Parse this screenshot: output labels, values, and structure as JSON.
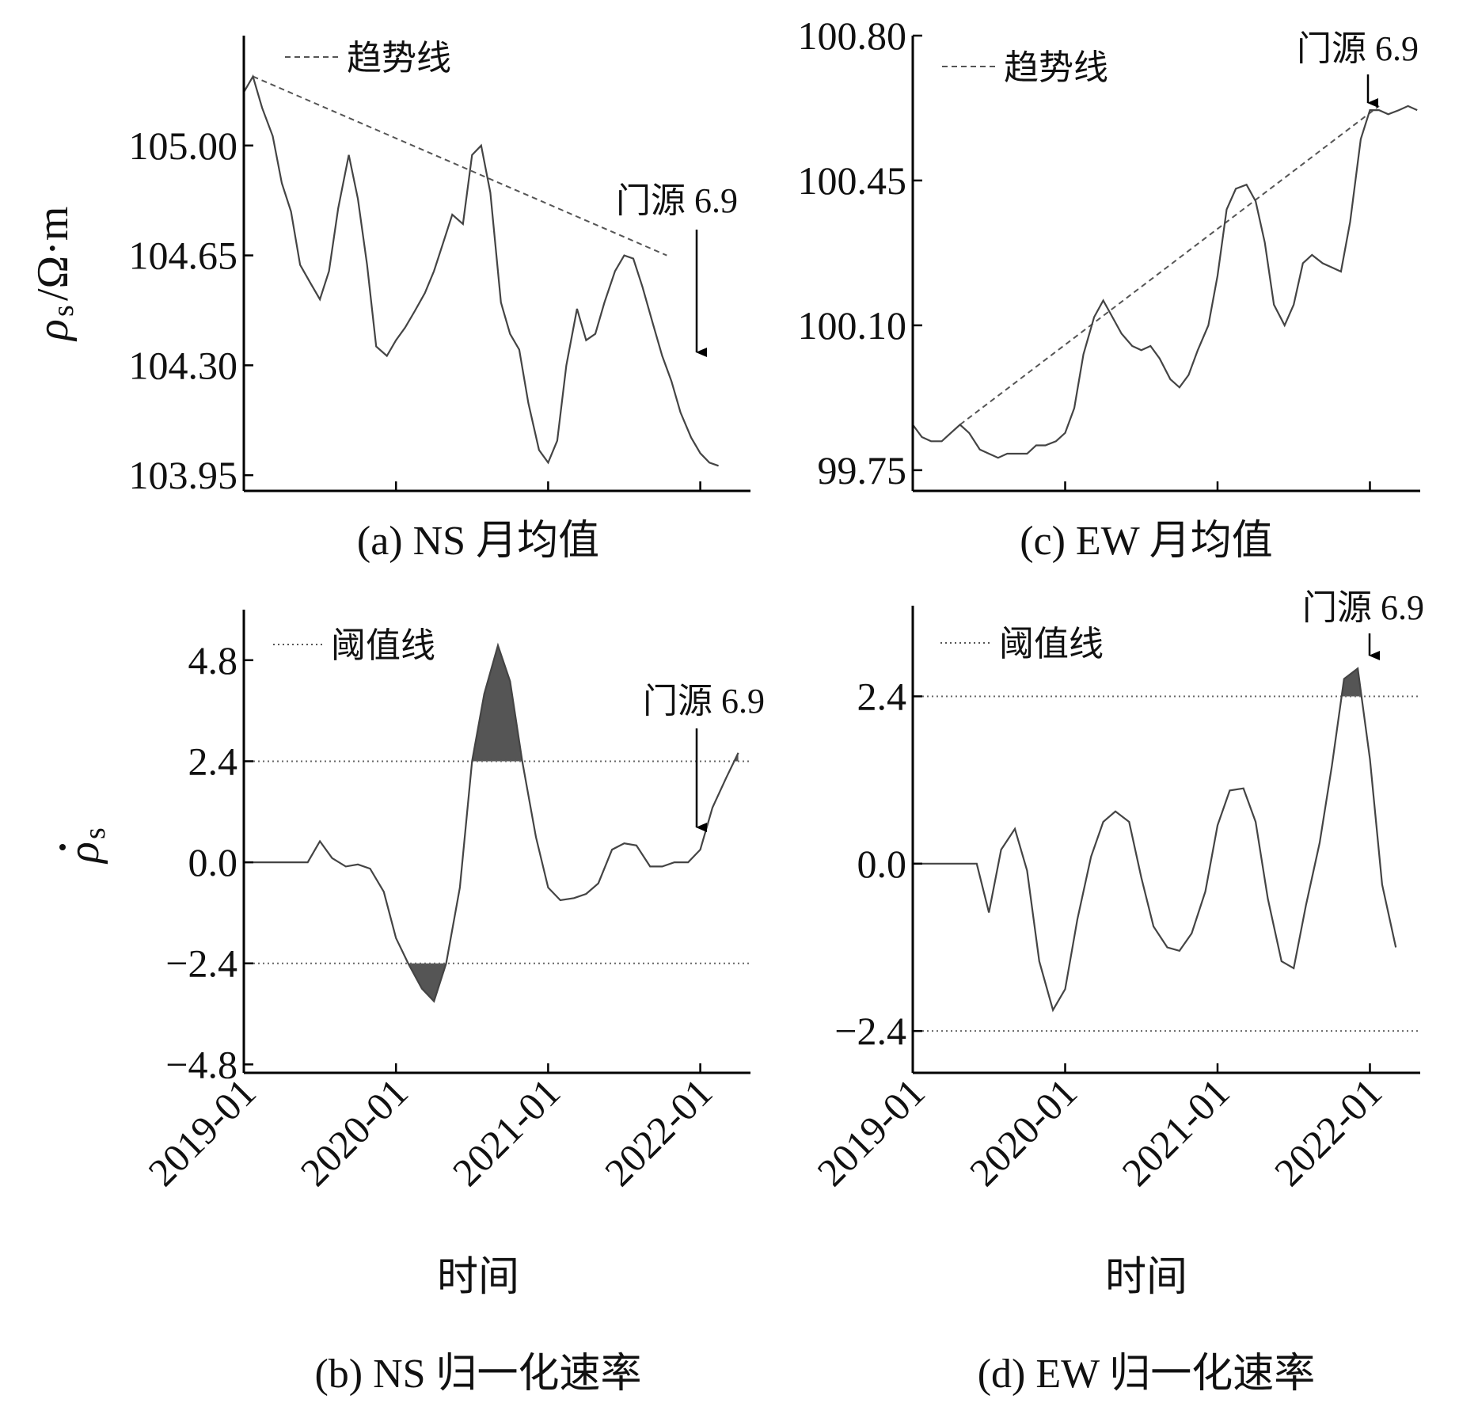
{
  "chart_data": [
    {
      "id": "a",
      "type": "line",
      "caption": "(a) NS 月均值",
      "ylabel_main": "ρ",
      "ylabel_sub": "s",
      "ylabel_unit": "/Ω·m",
      "ylim": [
        103.9,
        105.35
      ],
      "yticks": [
        103.95,
        104.3,
        104.65,
        105.0
      ],
      "ytick_labels": [
        "103.95",
        "104.30",
        "104.65",
        "105.00"
      ],
      "x_range": [
        2019.0,
        2022.33
      ],
      "xticks": [
        2019.0,
        2020.0,
        2021.0,
        2022.0
      ],
      "legend": "趋势线",
      "annotation": {
        "text": "门源 6.9",
        "x": 2022.0,
        "y": 104.31
      },
      "trend_line": [
        [
          2019.06,
          105.22
        ],
        [
          2021.78,
          104.65
        ]
      ],
      "series": [
        {
          "points": [
            [
              2019.0,
              105.17
            ],
            [
              2019.06,
              105.22
            ],
            [
              2019.12,
              105.12
            ],
            [
              2019.19,
              105.03
            ],
            [
              2019.25,
              104.88
            ],
            [
              2019.31,
              104.79
            ],
            [
              2019.37,
              104.62
            ],
            [
              2019.44,
              104.56
            ],
            [
              2019.5,
              104.51
            ],
            [
              2019.56,
              104.6
            ],
            [
              2019.62,
              104.8
            ],
            [
              2019.69,
              104.97
            ],
            [
              2019.75,
              104.83
            ],
            [
              2019.81,
              104.62
            ],
            [
              2019.87,
              104.36
            ],
            [
              2019.94,
              104.33
            ],
            [
              2020.0,
              104.38
            ],
            [
              2020.06,
              104.42
            ],
            [
              2020.12,
              104.47
            ],
            [
              2020.19,
              104.53
            ],
            [
              2020.25,
              104.6
            ],
            [
              2020.31,
              104.69
            ],
            [
              2020.37,
              104.78
            ],
            [
              2020.44,
              104.75
            ],
            [
              2020.5,
              104.97
            ],
            [
              2020.56,
              105.0
            ],
            [
              2020.62,
              104.85
            ],
            [
              2020.69,
              104.5
            ],
            [
              2020.75,
              104.4
            ],
            [
              2020.81,
              104.35
            ],
            [
              2020.87,
              104.18
            ],
            [
              2020.94,
              104.03
            ],
            [
              2021.0,
              103.99
            ],
            [
              2021.06,
              104.06
            ],
            [
              2021.12,
              104.3
            ],
            [
              2021.19,
              104.48
            ],
            [
              2021.25,
              104.38
            ],
            [
              2021.31,
              104.4
            ],
            [
              2021.37,
              104.5
            ],
            [
              2021.44,
              104.6
            ],
            [
              2021.5,
              104.65
            ],
            [
              2021.56,
              104.64
            ],
            [
              2021.62,
              104.55
            ],
            [
              2021.69,
              104.43
            ],
            [
              2021.75,
              104.33
            ],
            [
              2021.81,
              104.25
            ],
            [
              2021.87,
              104.15
            ],
            [
              2021.94,
              104.07
            ],
            [
              2022.0,
              104.02
            ],
            [
              2022.06,
              103.99
            ],
            [
              2022.12,
              103.98
            ]
          ]
        }
      ]
    },
    {
      "id": "c",
      "type": "line",
      "caption": "(c) EW 月均值",
      "ylim": [
        99.7,
        100.8
      ],
      "yticks": [
        99.75,
        100.1,
        100.45,
        100.8
      ],
      "ytick_labels": [
        "99.75",
        "100.10",
        "100.45",
        "100.80"
      ],
      "x_range": [
        2019.0,
        2022.33
      ],
      "xticks": [
        2019.0,
        2020.0,
        2021.0,
        2022.0
      ],
      "legend": "趋势线",
      "annotation": {
        "text": "门源 6.9",
        "x": 2022.0,
        "y": 100.67
      },
      "trend_line": [
        [
          2019.31,
          99.86
        ],
        [
          2022.06,
          100.63
        ]
      ],
      "series": [
        {
          "points": [
            [
              2019.0,
              99.86
            ],
            [
              2019.06,
              99.83
            ],
            [
              2019.12,
              99.82
            ],
            [
              2019.19,
              99.82
            ],
            [
              2019.25,
              99.84
            ],
            [
              2019.31,
              99.86
            ],
            [
              2019.37,
              99.84
            ],
            [
              2019.44,
              99.8
            ],
            [
              2019.5,
              99.79
            ],
            [
              2019.56,
              99.78
            ],
            [
              2019.62,
              99.79
            ],
            [
              2019.69,
              99.79
            ],
            [
              2019.75,
              99.79
            ],
            [
              2019.81,
              99.81
            ],
            [
              2019.87,
              99.81
            ],
            [
              2019.94,
              99.82
            ],
            [
              2020.0,
              99.84
            ],
            [
              2020.06,
              99.9
            ],
            [
              2020.12,
              100.03
            ],
            [
              2020.19,
              100.12
            ],
            [
              2020.25,
              100.16
            ],
            [
              2020.31,
              100.12
            ],
            [
              2020.37,
              100.08
            ],
            [
              2020.44,
              100.05
            ],
            [
              2020.5,
              100.04
            ],
            [
              2020.56,
              100.05
            ],
            [
              2020.62,
              100.02
            ],
            [
              2020.69,
              99.97
            ],
            [
              2020.75,
              99.95
            ],
            [
              2020.81,
              99.98
            ],
            [
              2020.87,
              100.04
            ],
            [
              2020.94,
              100.1
            ],
            [
              2021.0,
              100.22
            ],
            [
              2021.06,
              100.38
            ],
            [
              2021.12,
              100.43
            ],
            [
              2021.19,
              100.44
            ],
            [
              2021.25,
              100.4
            ],
            [
              2021.31,
              100.3
            ],
            [
              2021.37,
              100.15
            ],
            [
              2021.44,
              100.1
            ],
            [
              2021.5,
              100.15
            ],
            [
              2021.56,
              100.25
            ],
            [
              2021.62,
              100.27
            ],
            [
              2021.69,
              100.25
            ],
            [
              2021.75,
              100.24
            ],
            [
              2021.81,
              100.23
            ],
            [
              2021.87,
              100.35
            ],
            [
              2021.94,
              100.55
            ],
            [
              2022.0,
              100.62
            ],
            [
              2022.06,
              100.62
            ],
            [
              2022.12,
              100.61
            ],
            [
              2022.19,
              100.62
            ],
            [
              2022.25,
              100.63
            ],
            [
              2022.31,
              100.62
            ]
          ]
        }
      ]
    },
    {
      "id": "b",
      "type": "line",
      "caption": "(b) NS 归一化速率",
      "ylabel_main": "ρ",
      "ylabel_sub": "s",
      "xlabel": "时间",
      "ylim": [
        -5.0,
        6.0
      ],
      "yticks": [
        -4.8,
        -2.4,
        0.0,
        2.4,
        4.8
      ],
      "ytick_labels": [
        "−4.8",
        "−2.4",
        "0.0",
        "2.4",
        "4.8"
      ],
      "x_range": [
        2019.0,
        2022.33
      ],
      "xticks": [
        2019.0,
        2020.0,
        2021.0,
        2022.0
      ],
      "xtick_labels": [
        "2019-01",
        "2020-01",
        "2021-01",
        "2022-01"
      ],
      "legend": "阈值线",
      "thresholds": [
        2.4,
        -2.4
      ],
      "annotation": {
        "text": "门源 6.9",
        "x": 2022.0,
        "y": 0.7
      },
      "series": [
        {
          "points": [
            [
              2019.0,
              0.0
            ],
            [
              2019.42,
              0.0
            ],
            [
              2019.5,
              0.5
            ],
            [
              2019.58,
              0.1
            ],
            [
              2019.67,
              -0.1
            ],
            [
              2019.75,
              -0.05
            ],
            [
              2019.83,
              -0.15
            ],
            [
              2019.92,
              -0.7
            ],
            [
              2020.0,
              -1.8
            ],
            [
              2020.08,
              -2.4
            ],
            [
              2020.17,
              -3.0
            ],
            [
              2020.25,
              -3.3
            ],
            [
              2020.33,
              -2.4
            ],
            [
              2020.42,
              -0.6
            ],
            [
              2020.5,
              2.4
            ],
            [
              2020.58,
              4.0
            ],
            [
              2020.67,
              5.15
            ],
            [
              2020.75,
              4.3
            ],
            [
              2020.83,
              2.4
            ],
            [
              2020.92,
              0.6
            ],
            [
              2021.0,
              -0.6
            ],
            [
              2021.08,
              -0.9
            ],
            [
              2021.17,
              -0.85
            ],
            [
              2021.25,
              -0.75
            ],
            [
              2021.33,
              -0.5
            ],
            [
              2021.42,
              0.3
            ],
            [
              2021.5,
              0.45
            ],
            [
              2021.58,
              0.4
            ],
            [
              2021.67,
              -0.1
            ],
            [
              2021.75,
              -0.1
            ],
            [
              2021.83,
              0.0
            ],
            [
              2021.92,
              0.0
            ],
            [
              2022.0,
              0.3
            ],
            [
              2022.08,
              1.3
            ],
            [
              2022.17,
              2.0
            ],
            [
              2022.25,
              2.6
            ]
          ]
        }
      ]
    },
    {
      "id": "d",
      "type": "line",
      "caption": "(d) EW 归一化速率",
      "xlabel": "时间",
      "ylim": [
        -3.0,
        3.7
      ],
      "yticks": [
        -2.4,
        0.0,
        2.4
      ],
      "ytick_labels": [
        "−2.4",
        "0.0",
        "2.4"
      ],
      "x_range": [
        2019.0,
        2022.33
      ],
      "xticks": [
        2019.0,
        2020.0,
        2021.0,
        2022.0
      ],
      "xtick_labels": [
        "2019-01",
        "2020-01",
        "2021-01",
        "2022-01"
      ],
      "legend": "阈值线",
      "thresholds": [
        2.4,
        -2.4
      ],
      "annotation": {
        "text": "门源 6.9",
        "x": 2022.0,
        "y": 2.8
      },
      "series": [
        {
          "points": [
            [
              2019.0,
              0.0
            ],
            [
              2019.42,
              0.0
            ],
            [
              2019.5,
              -0.7
            ],
            [
              2019.58,
              0.2
            ],
            [
              2019.67,
              0.5
            ],
            [
              2019.75,
              -0.1
            ],
            [
              2019.83,
              -1.4
            ],
            [
              2019.92,
              -2.1
            ],
            [
              2020.0,
              -1.8
            ],
            [
              2020.08,
              -0.8
            ],
            [
              2020.17,
              0.1
            ],
            [
              2020.25,
              0.6
            ],
            [
              2020.33,
              0.75
            ],
            [
              2020.42,
              0.6
            ],
            [
              2020.5,
              -0.2
            ],
            [
              2020.58,
              -0.9
            ],
            [
              2020.67,
              -1.2
            ],
            [
              2020.75,
              -1.25
            ],
            [
              2020.83,
              -1.0
            ],
            [
              2020.92,
              -0.4
            ],
            [
              2021.0,
              0.55
            ],
            [
              2021.08,
              1.05
            ],
            [
              2021.17,
              1.08
            ],
            [
              2021.25,
              0.6
            ],
            [
              2021.33,
              -0.5
            ],
            [
              2021.42,
              -1.4
            ],
            [
              2021.5,
              -1.5
            ],
            [
              2021.58,
              -0.6
            ],
            [
              2021.67,
              0.3
            ],
            [
              2021.75,
              1.4
            ],
            [
              2021.83,
              2.65
            ],
            [
              2021.92,
              2.8
            ],
            [
              2022.0,
              1.5
            ],
            [
              2022.08,
              -0.3
            ],
            [
              2022.17,
              -1.2
            ]
          ]
        }
      ]
    }
  ]
}
